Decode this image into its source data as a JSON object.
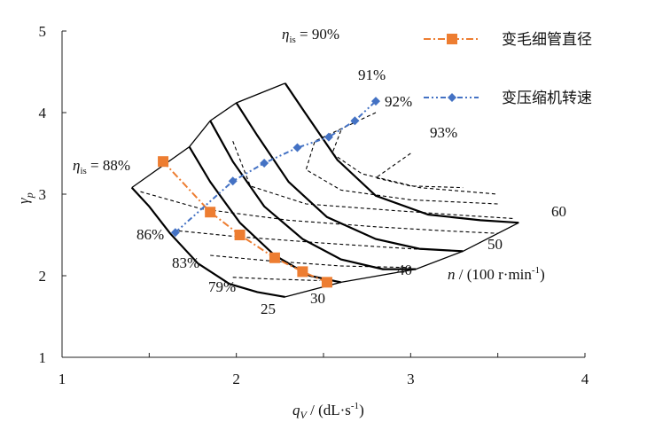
{
  "chart_data": {
    "type": "line",
    "xlabel": "q_V / (dL·s⁻¹)",
    "ylabel": "γ_p",
    "xlim": [
      1,
      4
    ],
    "ylim": [
      1,
      5
    ],
    "xticks": [
      1,
      2,
      3,
      4
    ],
    "yticks": [
      1,
      2,
      3,
      4,
      5
    ],
    "legend_position": "top-right",
    "speed_line_unit": "n / (100 r·min⁻¹)",
    "series": [
      {
        "name": "变毛细管直径",
        "color": "#ED7D31",
        "marker": "square",
        "x": [
          1.58,
          1.85,
          2.02,
          2.22,
          2.38,
          2.52
        ],
        "y": [
          3.4,
          2.78,
          2.5,
          2.22,
          2.05,
          1.92
        ]
      },
      {
        "name": "变压缩机转速",
        "color": "#4472C4",
        "marker": "diamond",
        "x": [
          1.65,
          1.98,
          2.16,
          2.35,
          2.53,
          2.68,
          2.8
        ],
        "y": [
          2.53,
          3.16,
          3.38,
          3.57,
          3.7,
          3.9,
          4.14
        ]
      }
    ],
    "speed_lines": [
      {
        "label": "25",
        "x": [
          1.4,
          1.5,
          1.62,
          1.78,
          1.96,
          2.12,
          2.28
        ],
        "y": [
          3.08,
          2.85,
          2.52,
          2.15,
          1.9,
          1.8,
          1.74
        ]
      },
      {
        "label": "30",
        "x": [
          1.73,
          1.85,
          2.02,
          2.22,
          2.42,
          2.6
        ],
        "y": [
          3.58,
          3.15,
          2.65,
          2.25,
          2.0,
          1.92
        ]
      },
      {
        "label": "40",
        "x": [
          1.85,
          1.98,
          2.16,
          2.38,
          2.6,
          2.84,
          3.03
        ],
        "y": [
          3.9,
          3.4,
          2.85,
          2.45,
          2.2,
          2.08,
          2.08
        ]
      },
      {
        "label": "50",
        "x": [
          2.0,
          2.12,
          2.3,
          2.52,
          2.8,
          3.05,
          3.3
        ],
        "y": [
          4.12,
          3.72,
          3.15,
          2.72,
          2.45,
          2.33,
          2.3
        ]
      },
      {
        "label": "60",
        "x": [
          2.28,
          2.4,
          2.58,
          2.8,
          3.1,
          3.4,
          3.62
        ],
        "y": [
          4.36,
          3.98,
          3.42,
          2.98,
          2.75,
          2.68,
          2.65
        ]
      }
    ],
    "efficiency_contours": [
      {
        "label": "79%",
        "x": [
          1.98,
          2.2,
          2.48
        ],
        "y": [
          1.98,
          1.96,
          1.94
        ]
      },
      {
        "label": "83%",
        "x": [
          1.85,
          2.2,
          2.6,
          3.0
        ],
        "y": [
          2.25,
          2.18,
          2.12,
          2.1
        ]
      },
      {
        "label": "86%",
        "x": [
          1.67,
          2.0,
          2.5,
          3.0,
          3.3
        ],
        "y": [
          2.55,
          2.48,
          2.4,
          2.33,
          2.3
        ]
      },
      {
        "label": "88%",
        "x": [
          1.45,
          1.8,
          2.3,
          2.8,
          3.2,
          3.5
        ],
        "y": [
          3.03,
          2.82,
          2.68,
          2.6,
          2.55,
          2.52
        ]
      },
      {
        "label": "90%",
        "x": [
          1.98,
          2.08,
          2.4,
          2.9,
          3.3,
          3.6
        ],
        "y": [
          3.65,
          3.1,
          2.88,
          2.8,
          2.74,
          2.7
        ]
      },
      {
        "label": "91%",
        "x": [
          2.8,
          2.45,
          2.4,
          2.6,
          3.0,
          3.5
        ],
        "y": [
          4.0,
          3.65,
          3.3,
          3.05,
          2.93,
          2.88
        ]
      },
      {
        "label": "92%",
        "x": [
          2.6,
          2.55,
          2.72,
          3.05,
          3.5
        ],
        "y": [
          3.78,
          3.5,
          3.25,
          3.08,
          3.0
        ]
      },
      {
        "label": "93%",
        "x": [
          3.0,
          2.8,
          3.0,
          3.3
        ],
        "y": [
          3.5,
          3.2,
          3.1,
          3.08
        ]
      }
    ],
    "efficiency_labels": {
      "eta_88": "88%",
      "eta_90": "90%",
      "eta_91": "91%",
      "eta_92": "92%",
      "eta_93": "93%",
      "eta_86": "86%",
      "eta_83": "83%",
      "eta_79": "79%"
    }
  }
}
